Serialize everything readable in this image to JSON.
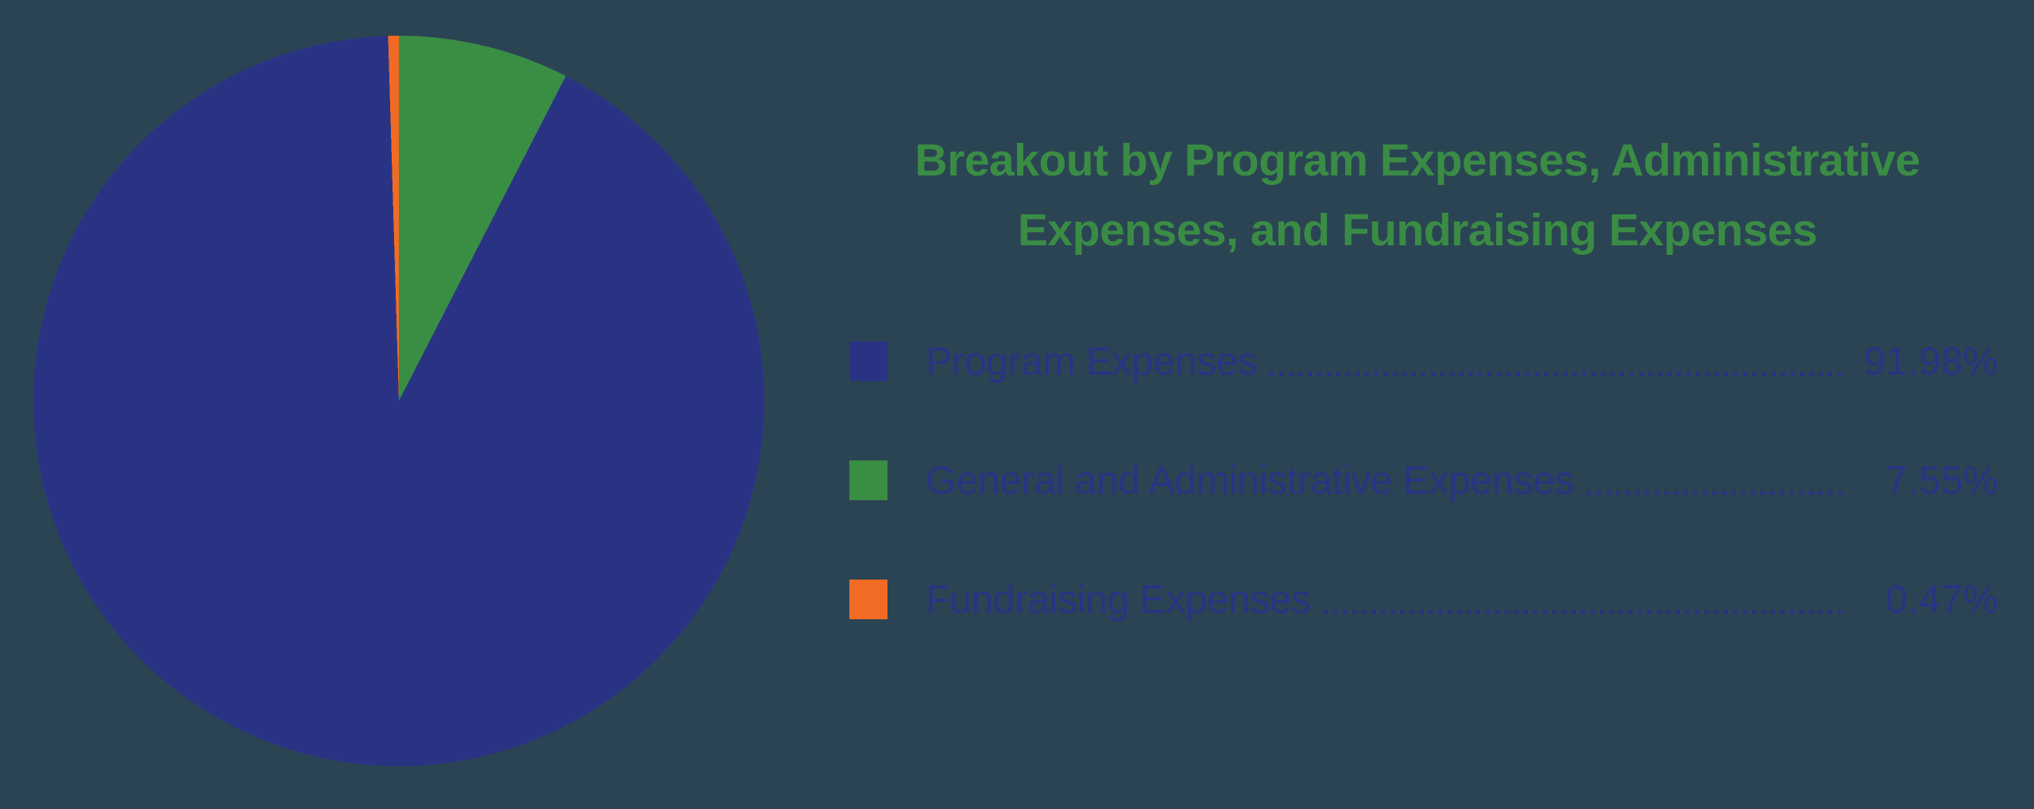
{
  "background_color": "#2B4454",
  "header": {
    "title_lines": [
      "Breakout by Program Expenses, Administrative",
      "Expenses, and Fundraising Expenses"
    ],
    "title_color": "#3A8C45"
  },
  "legend": {
    "text_color": "#2A3383",
    "items": [
      {
        "label": "Program Expenses",
        "value_label": "91.98%",
        "swatch_color": "#2A3383"
      },
      {
        "label": "General and Administrative Expenses",
        "value_label": "7.55%",
        "swatch_color": "#3A8E44"
      },
      {
        "label": "Fundraising Expenses",
        "value_label": "0.47%",
        "swatch_color": "#F26B24"
      }
    ]
  },
  "chart_data": {
    "type": "pie",
    "title": "Breakout by Program Expenses, Administrative Expenses, and Fundraising Expenses",
    "slices": [
      {
        "label": "Program Expenses",
        "value": 91.98,
        "color": "#2A3383"
      },
      {
        "label": "General and Administrative Expenses",
        "value": 7.55,
        "color": "#3A8E44"
      },
      {
        "label": "Fundraising Expenses",
        "value": 0.47,
        "color": "#F26B24"
      }
    ],
    "value_format": "percent",
    "legend_position": "right",
    "start_angle_deg": 0,
    "direction": "clockwise",
    "notes": "Green wedge begins at 12 o'clock going clockwise; orange sliver ends at 12 o'clock; navy fills the remainder."
  }
}
